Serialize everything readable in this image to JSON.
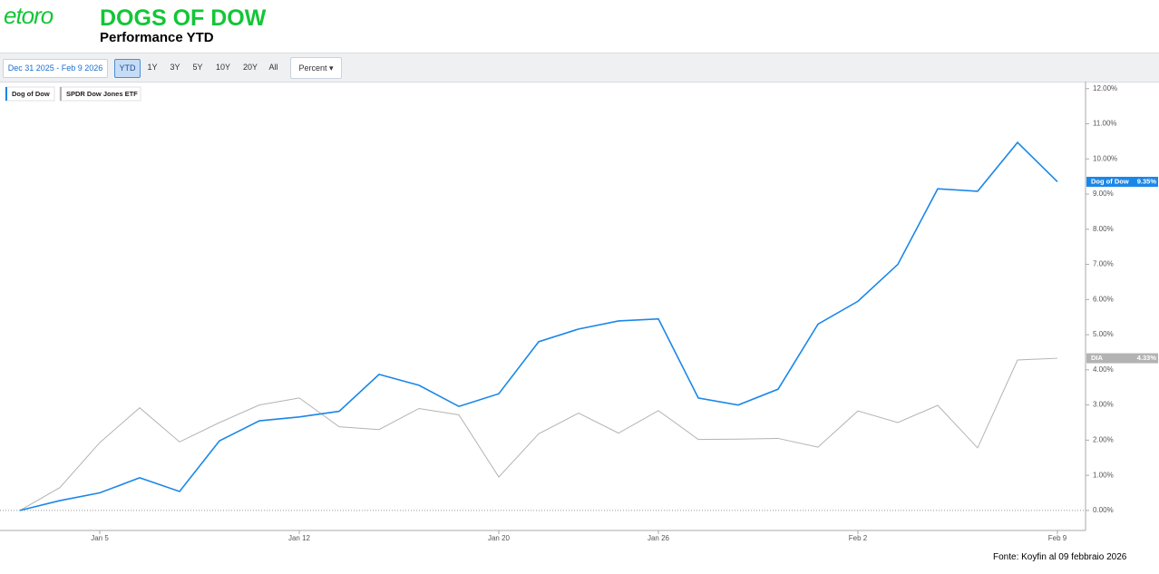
{
  "header": {
    "logo": "etoro",
    "title": "DOGS OF DOW",
    "subtitle": "Performance YTD"
  },
  "toolbar": {
    "date_range": "Dec 31 2025 - Feb 9 2026",
    "ranges": [
      "YTD",
      "1Y",
      "3Y",
      "5Y",
      "10Y",
      "20Y",
      "All"
    ],
    "active": "YTD",
    "mode": "Percent"
  },
  "source": "Fonte:  Koyfin al 09  febbraio 2026",
  "chart_data": {
    "type": "line",
    "categories": [
      null,
      null,
      "Jan 5",
      null,
      null,
      null,
      null,
      "Jan 12",
      null,
      null,
      null,
      null,
      "Jan 20",
      null,
      null,
      null,
      "Jan 26",
      null,
      null,
      null,
      null,
      "Feb 2",
      null,
      null,
      null,
      null,
      "Feb 9"
    ],
    "series": [
      {
        "name": "Dog of Dow",
        "color": "#1a87e8",
        "badge_name": "Dog of Dow",
        "badge_label": "9.35%",
        "values": [
          0,
          0.28,
          0.5,
          0.93,
          0.54,
          1.98,
          2.55,
          2.66,
          2.82,
          3.87,
          3.56,
          2.96,
          3.32,
          4.8,
          5.16,
          5.39,
          5.45,
          3.2,
          3.0,
          3.45,
          5.3,
          5.95,
          7.0,
          9.15,
          9.08,
          10.47,
          9.35
        ]
      },
      {
        "name": "SPDR Dow Jones ETF",
        "color": "#b3b3b3",
        "badge_name": "DIA",
        "badge_label": "4.33%",
        "values": [
          0,
          0.65,
          1.93,
          2.92,
          1.95,
          2.5,
          3.0,
          3.2,
          2.38,
          2.3,
          2.9,
          2.72,
          0.95,
          2.18,
          2.77,
          2.2,
          2.84,
          2.02,
          2.03,
          2.05,
          1.8,
          2.83,
          2.5,
          2.99,
          1.78,
          4.28,
          4.33
        ]
      }
    ],
    "ylim": [
      -0.57,
      12.2
    ],
    "yticks": [
      {
        "value": 0,
        "label": "0.00%"
      },
      {
        "value": 1,
        "label": "1.00%"
      },
      {
        "value": 2,
        "label": "2.00%"
      },
      {
        "value": 3,
        "label": "3.00%"
      },
      {
        "value": 4,
        "label": "4.00%"
      },
      {
        "value": 5,
        "label": "5.00%"
      },
      {
        "value": 6,
        "label": "6.00%"
      },
      {
        "value": 7,
        "label": "7.00%"
      },
      {
        "value": 8,
        "label": "8.00%"
      },
      {
        "value": 9,
        "label": "9.00%"
      },
      {
        "value": 10,
        "label": "10.00%"
      },
      {
        "value": 11,
        "label": "11.00%"
      },
      {
        "value": 12,
        "label": "12.00%"
      }
    ],
    "axis_side": "right",
    "zero_line": true
  }
}
